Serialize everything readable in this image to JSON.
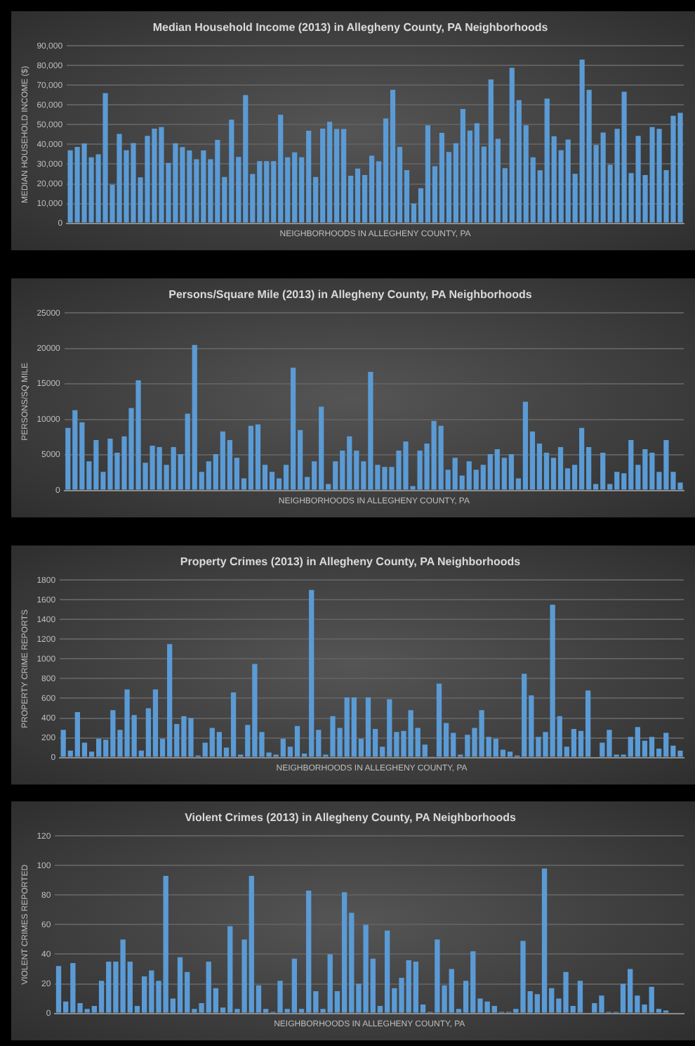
{
  "chart_data": [
    {
      "type": "bar",
      "title": "Median Household Income (2013) in Allegheny County, PA Neighborhoods",
      "xlabel": "NEIGHBORHOODS IN ALLEGHENY COUNTY, PA",
      "ylabel": "MEDIAN HOUSEHOLD INCOME ($)",
      "color": "#5b9bd5",
      "grid": "y",
      "categories": [
        null,
        null,
        null,
        null,
        null,
        null,
        null,
        null,
        null,
        null,
        null,
        null,
        null,
        null,
        null,
        null,
        null,
        null,
        null,
        null,
        null,
        null,
        null,
        null,
        null,
        null,
        null,
        null,
        null,
        null,
        null,
        null,
        null,
        null,
        null,
        null,
        null,
        null,
        null,
        null,
        null,
        null,
        null,
        null,
        null,
        null,
        null,
        null,
        null,
        null,
        null,
        null,
        null,
        null,
        null,
        null,
        null,
        null,
        null,
        null,
        null,
        null,
        null,
        null,
        null,
        null,
        null,
        null,
        null,
        null,
        null,
        null,
        null,
        null,
        null,
        null,
        null,
        null,
        null,
        null,
        null,
        null,
        null,
        null,
        null,
        null,
        null,
        null
      ],
      "values": [
        37000,
        38700,
        40500,
        33500,
        35000,
        66000,
        19600,
        45300,
        37000,
        40700,
        23300,
        44300,
        48000,
        48800,
        30600,
        40600,
        38600,
        36900,
        32500,
        36900,
        32500,
        42300,
        23500,
        52500,
        33600,
        65000,
        25000,
        31500,
        31500,
        31500,
        55000,
        33500,
        36000,
        33500,
        46900,
        23500,
        48000,
        51500,
        47800,
        47800,
        24100,
        27800,
        24500,
        34300,
        31400,
        53200,
        67700,
        38700,
        27000,
        10000,
        17800,
        49700,
        28900,
        45900,
        36100,
        40600,
        58000,
        47000,
        50800,
        38900,
        73000,
        42800,
        27900,
        78800,
        62400,
        49700,
        33500,
        26900,
        63200,
        44200,
        37000,
        42500,
        25100,
        83000,
        67700,
        39700,
        46000,
        29700,
        47900,
        66700,
        25400,
        44300,
        24500,
        48800,
        47900,
        27000,
        54500,
        56000
      ],
      "ylim": [
        0,
        90000
      ],
      "yticks": [
        {
          "value": 0,
          "label": "0"
        },
        {
          "value": 10000,
          "label": "10,000"
        },
        {
          "value": 20000,
          "label": "20,000"
        },
        {
          "value": 30000,
          "label": "30,000"
        },
        {
          "value": 40000,
          "label": "40,000"
        },
        {
          "value": 50000,
          "label": "50,000"
        },
        {
          "value": 60000,
          "label": "60,000"
        },
        {
          "value": 70000,
          "label": "70,000"
        },
        {
          "value": 80000,
          "label": "80,000"
        },
        {
          "value": 90000,
          "label": "90,000"
        }
      ]
    },
    {
      "type": "bar",
      "title": "Persons/Square Mile (2013) in Allegheny County, PA Neighborhoods",
      "xlabel": "NEIGHBORHOODS IN ALLEGHENY COUNTY, PA",
      "ylabel": "PERSONS/SQ MILE",
      "color": "#5b9bd5",
      "grid": "y",
      "categories": [
        null,
        null,
        null,
        null,
        null,
        null,
        null,
        null,
        null,
        null,
        null,
        null,
        null,
        null,
        null,
        null,
        null,
        null,
        null,
        null,
        null,
        null,
        null,
        null,
        null,
        null,
        null,
        null,
        null,
        null,
        null,
        null,
        null,
        null,
        null,
        null,
        null,
        null,
        null,
        null,
        null,
        null,
        null,
        null,
        null,
        null,
        null,
        null,
        null,
        null,
        null,
        null,
        null,
        null,
        null,
        null,
        null,
        null,
        null,
        null,
        null,
        null,
        null,
        null,
        null,
        null,
        null,
        null,
        null,
        null,
        null,
        null,
        null,
        null,
        null,
        null,
        null,
        null,
        null,
        null,
        null,
        null,
        null,
        null,
        null,
        null,
        null,
        null
      ],
      "values": [
        8800,
        11300,
        9600,
        4100,
        7100,
        2600,
        7300,
        5300,
        7600,
        11600,
        15500,
        3900,
        6300,
        6100,
        3600,
        6100,
        5100,
        10800,
        20500,
        2600,
        4100,
        5100,
        8300,
        7100,
        4600,
        1700,
        9100,
        9300,
        3600,
        2600,
        1700,
        3600,
        17300,
        8500,
        1900,
        4100,
        11800,
        900,
        4100,
        5600,
        7600,
        5600,
        4100,
        16700,
        3600,
        3300,
        3300,
        5600,
        6900,
        600,
        5600,
        6600,
        9800,
        9100,
        2900,
        4600,
        2100,
        4100,
        2900,
        3600,
        5100,
        5800,
        4600,
        5100,
        1700,
        12500,
        8300,
        6600,
        5300,
        4600,
        6100,
        3100,
        3600,
        8800,
        6100,
        900,
        5300,
        900,
        2600,
        2400,
        7100,
        3600,
        5800,
        5300,
        2600,
        7100,
        2600,
        1100
      ],
      "ylim": [
        0,
        25000
      ],
      "yticks": [
        0,
        5000,
        10000,
        15000,
        20000,
        25000
      ]
    },
    {
      "type": "bar",
      "title": "Property Crimes (2013) in Allegheny County, PA Neighborhoods",
      "xlabel": "NEIGHBORHOODS IN ALLEGHENY COUNTY, PA",
      "ylabel": "PROPERTY CRIME REPORTS",
      "color": "#5b9bd5",
      "grid": "y",
      "categories": [
        null,
        null,
        null,
        null,
        null,
        null,
        null,
        null,
        null,
        null,
        null,
        null,
        null,
        null,
        null,
        null,
        null,
        null,
        null,
        null,
        null,
        null,
        null,
        null,
        null,
        null,
        null,
        null,
        null,
        null,
        null,
        null,
        null,
        null,
        null,
        null,
        null,
        null,
        null,
        null,
        null,
        null,
        null,
        null,
        null,
        null,
        null,
        null,
        null,
        null,
        null,
        null,
        null,
        null,
        null,
        null,
        null,
        null,
        null,
        null,
        null,
        null,
        null,
        null,
        null,
        null,
        null,
        null,
        null,
        null,
        null,
        null,
        null,
        null,
        null,
        null,
        null,
        null,
        null,
        null,
        null,
        null,
        null,
        null,
        null,
        null,
        null,
        null
      ],
      "values": [
        280,
        70,
        460,
        150,
        60,
        190,
        180,
        480,
        280,
        690,
        430,
        70,
        500,
        690,
        190,
        1150,
        340,
        420,
        400,
        20,
        150,
        300,
        260,
        100,
        660,
        30,
        330,
        950,
        260,
        50,
        30,
        190,
        110,
        320,
        40,
        1700,
        280,
        30,
        420,
        300,
        610,
        610,
        190,
        610,
        290,
        110,
        590,
        260,
        270,
        480,
        300,
        130,
        10,
        750,
        350,
        250,
        30,
        230,
        300,
        480,
        210,
        190,
        80,
        60,
        20,
        850,
        630,
        210,
        260,
        1550,
        420,
        110,
        290,
        270,
        680,
        0,
        150,
        280,
        30,
        30,
        210,
        310,
        170,
        210,
        90,
        250,
        120,
        70
      ],
      "ylim": [
        0,
        1800
      ],
      "yticks": [
        0,
        200,
        400,
        600,
        800,
        1000,
        1200,
        1400,
        1600,
        1800
      ]
    },
    {
      "type": "bar",
      "title": "Violent Crimes (2013) in Allegheny County, PA Neighborhoods",
      "xlabel": "NEIGHBORHOODS IN ALLEGHENY COUNTY, PA",
      "ylabel": "VIOLENT CRIMES REPORTED",
      "color": "#5b9bd5",
      "grid": "y",
      "categories": [
        null,
        null,
        null,
        null,
        null,
        null,
        null,
        null,
        null,
        null,
        null,
        null,
        null,
        null,
        null,
        null,
        null,
        null,
        null,
        null,
        null,
        null,
        null,
        null,
        null,
        null,
        null,
        null,
        null,
        null,
        null,
        null,
        null,
        null,
        null,
        null,
        null,
        null,
        null,
        null,
        null,
        null,
        null,
        null,
        null,
        null,
        null,
        null,
        null,
        null,
        null,
        null,
        null,
        null,
        null,
        null,
        null,
        null,
        null,
        null,
        null,
        null,
        null,
        null,
        null,
        null,
        null,
        null,
        null,
        null,
        null,
        null,
        null,
        null,
        null,
        null,
        null,
        null,
        null,
        null,
        null,
        null,
        null,
        null,
        null,
        null,
        null,
        null
      ],
      "values": [
        32,
        8,
        34,
        7,
        3,
        5,
        22,
        35,
        35,
        50,
        35,
        5,
        25,
        29,
        22,
        93,
        10,
        38,
        28,
        3,
        7,
        35,
        17,
        4,
        59,
        3,
        50,
        93,
        19,
        3,
        1,
        22,
        3,
        37,
        3,
        83,
        15,
        3,
        40,
        15,
        82,
        68,
        20,
        60,
        37,
        5,
        56,
        17,
        24,
        36,
        35,
        6,
        1,
        50,
        19,
        30,
        3,
        22,
        42,
        10,
        8,
        5,
        1,
        1,
        3,
        49,
        15,
        13,
        98,
        17,
        10,
        28,
        5,
        22,
        0,
        7,
        12,
        1,
        1,
        20,
        30,
        12,
        6,
        18,
        3,
        2,
        0,
        0
      ],
      "ylim": [
        0,
        120
      ],
      "yticks": [
        0,
        20,
        40,
        60,
        80,
        100,
        120
      ]
    }
  ]
}
